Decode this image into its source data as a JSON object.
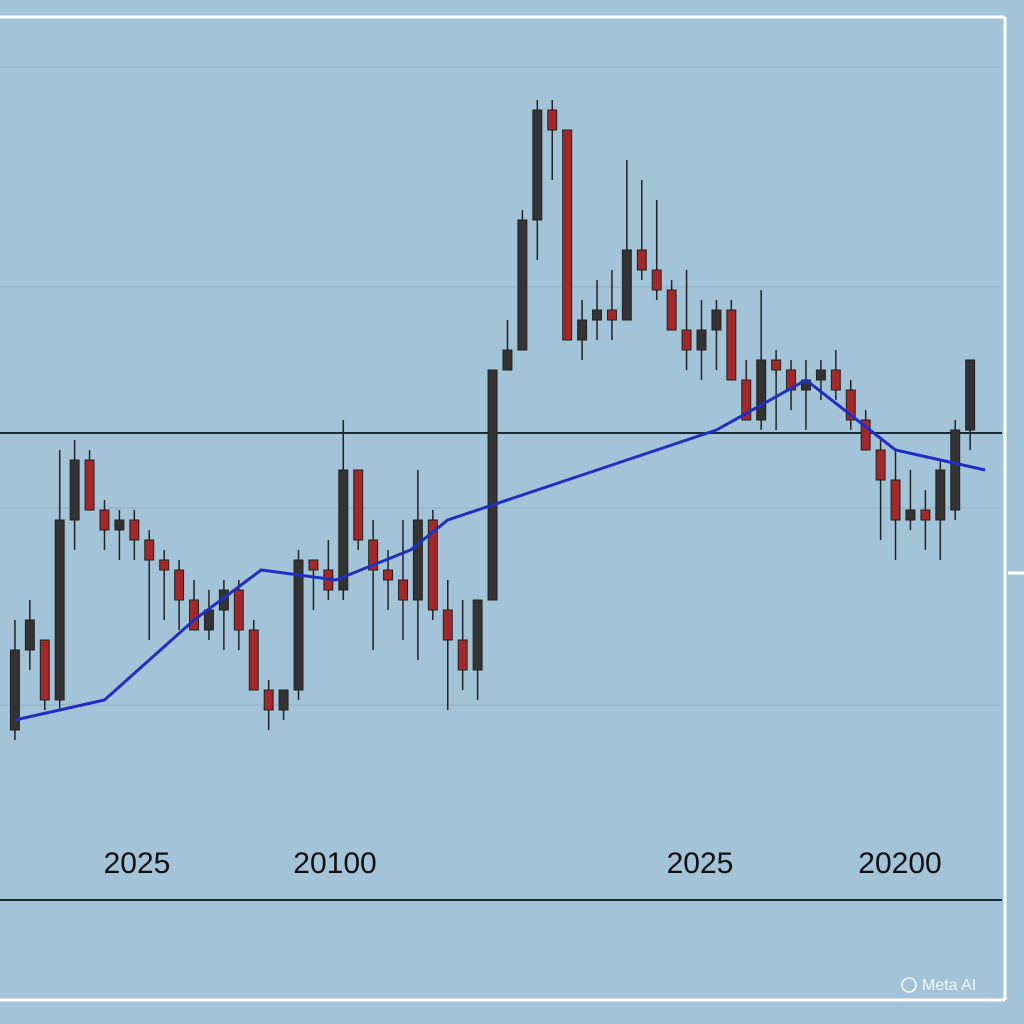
{
  "chart_data": {
    "type": "candlestick",
    "xlim": [
      -1,
      66
    ],
    "ylim": [
      0,
      100
    ],
    "up_color": "#333333",
    "down_color": "#a3282a",
    "candles": {
      "open": [
        27,
        35,
        36,
        30,
        48,
        54,
        49,
        47,
        48,
        46,
        44,
        43,
        40,
        37,
        39,
        41,
        37,
        31,
        29,
        31,
        44,
        43,
        41,
        53,
        46,
        43,
        42,
        40,
        48,
        39,
        36,
        33,
        40,
        63,
        65,
        78,
        89,
        87,
        66,
        68,
        69,
        68,
        75,
        73,
        71,
        67,
        65,
        67,
        69,
        62,
        58,
        64,
        63,
        61,
        62,
        63,
        61,
        58,
        55,
        52,
        48,
        49,
        48,
        49,
        57
      ],
      "high": [
        38,
        40,
        36,
        55,
        56,
        55,
        50,
        49,
        49,
        47,
        45,
        44,
        42,
        41,
        42,
        42,
        38,
        32,
        31,
        45,
        44,
        46,
        58,
        53,
        48,
        45,
        48,
        53,
        49,
        42,
        40,
        40,
        63,
        68,
        79,
        90,
        90,
        87,
        70,
        72,
        73,
        84,
        82,
        80,
        72,
        73,
        70,
        70,
        70,
        64,
        71,
        65,
        64,
        64,
        64,
        65,
        62,
        59,
        56,
        55,
        53,
        51,
        54,
        58,
        64
      ],
      "low": [
        26,
        33,
        29,
        29,
        45,
        49,
        45,
        44,
        44,
        36,
        38,
        37,
        37,
        36,
        35,
        35,
        31,
        27,
        28,
        30,
        39,
        40,
        40,
        45,
        35,
        39,
        36,
        34,
        38,
        29,
        31,
        30,
        40,
        63,
        65,
        74,
        82,
        66,
        64,
        66,
        66,
        68,
        72,
        70,
        67,
        63,
        62,
        63,
        62,
        58,
        57,
        57,
        59,
        57,
        60,
        60,
        57,
        55,
        46,
        44,
        47,
        45,
        44,
        48,
        55
      ],
      "close": [
        35,
        38,
        30,
        48,
        54,
        49,
        47,
        48,
        46,
        44,
        43,
        40,
        37,
        39,
        41,
        37,
        31,
        29,
        31,
        44,
        43,
        41,
        53,
        46,
        43,
        42,
        40,
        48,
        39,
        36,
        33,
        40,
        63,
        65,
        78,
        89,
        87,
        66,
        68,
        69,
        68,
        75,
        73,
        71,
        67,
        65,
        67,
        69,
        62,
        58,
        64,
        63,
        61,
        62,
        63,
        61,
        58,
        55,
        52,
        48,
        49,
        48,
        53,
        57,
        64
      ]
    },
    "moving_average": {
      "color": "#1f2fc4",
      "x": [
        0,
        6,
        12,
        16.5,
        21.5,
        26.5,
        29,
        41,
        47,
        53,
        59,
        65
      ],
      "values": [
        28,
        30,
        38,
        43,
        42,
        45,
        48,
        54,
        57,
        62,
        55,
        53
      ]
    },
    "x_labels": [
      "2025",
      "20100",
      "2025",
      "20200"
    ],
    "watermark": "Meta AI"
  }
}
